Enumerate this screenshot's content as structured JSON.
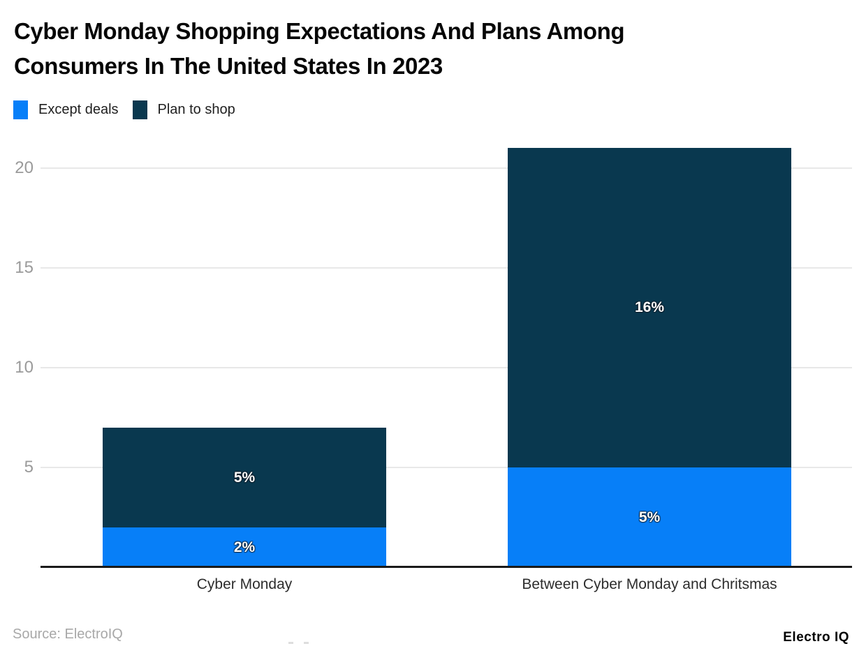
{
  "title": {
    "line1": "Cyber Monday Shopping Expectations And Plans Among",
    "line2": "Consumers In The United States In 2023"
  },
  "source": "Source: ElectroIQ",
  "brand": "Electro IQ",
  "colors": {
    "except_deals": "#077ff8",
    "plan_to_shop": "#09384f",
    "axis_line": "#1a1a1a",
    "gridline": "#e8e8e8",
    "tick_label": "#9a9a9a",
    "data_label": "#ffffff"
  },
  "chart_data": {
    "type": "bar",
    "stacked": true,
    "title": "Cyber Monday Shopping Expectations And Plans Among Consumers In The United States In 2023",
    "categories": [
      "Cyber Monday",
      "Between Cyber Monday and Chritsmas"
    ],
    "series": [
      {
        "name": "Except deals",
        "color": "#077ff8",
        "values": [
          2,
          5
        ]
      },
      {
        "name": "Plan to shop",
        "color": "#09384f",
        "values": [
          5,
          16
        ]
      }
    ],
    "totals": [
      7,
      21
    ],
    "value_suffix": "%",
    "yticks": [
      5,
      10,
      15,
      20
    ],
    "ylim": [
      0,
      21
    ],
    "xlabel": "",
    "ylabel": "",
    "grid": "horizontal",
    "legend_position": "top-left"
  }
}
